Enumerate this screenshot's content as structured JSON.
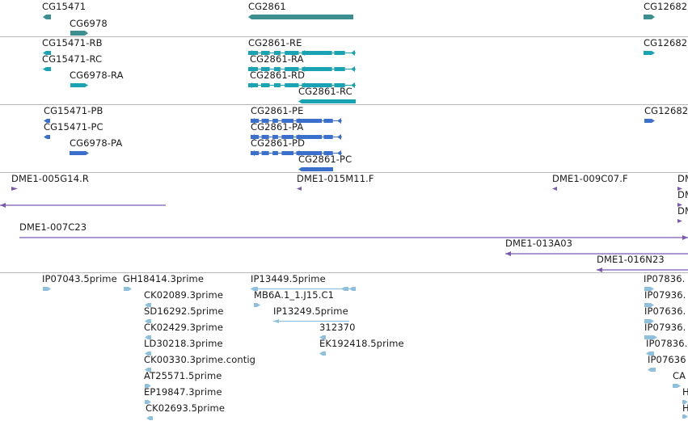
{
  "colors": {
    "gene": "#3d8f8f",
    "mrna": "#1aa3b3",
    "protein": "#3a6fcb",
    "clone": "#7a5bb0",
    "est": "#8ebfdd",
    "divider": "#b8b8b8"
  },
  "tracks": {
    "genes": {
      "labels": [
        "CG15471",
        "CG6978",
        "CG2861",
        "CG12682"
      ]
    },
    "transcripts": {
      "labels": [
        "CG15471-RB",
        "CG15471-RC",
        "CG6978-RA",
        "CG2861-RE",
        "CG2861-RA",
        "CG2861-RD",
        "CG2861-RC",
        "CG12682"
      ]
    },
    "proteins": {
      "labels": [
        "CG15471-PB",
        "CG15471-PC",
        "CG6978-PA",
        "CG2861-PE",
        "CG2861-PA",
        "CG2861-PD",
        "CG2861-PC",
        "CG12682"
      ]
    },
    "clones": {
      "labels": [
        "DME1-005G14.R",
        "DME1-015M11.F",
        "DME1-009C07.F",
        "DME1-007C23",
        "DME1-013A03",
        "DME1-016N23",
        "DM",
        "DM",
        "DM"
      ]
    },
    "ests": {
      "labels": [
        "IP07043.5prime",
        "GH18414.3prime",
        "CK02089.3prime",
        "SD16292.5prime",
        "CK02429.3prime",
        "LD30218.3prime",
        "CK00330.3prime.contig",
        "AT25571.5prime",
        "EP19847.3prime",
        "CK02693.5prime",
        "IP13449.5prime",
        "MB6A.1_1.J15.C1",
        "IP13249.5prime",
        "312370",
        "EK192418.5prime",
        "IP07836.",
        "IP07936.",
        "IP07636.",
        "IP07936.",
        "IP07836.",
        "IP07636",
        "CA",
        "H",
        "H"
      ]
    }
  }
}
